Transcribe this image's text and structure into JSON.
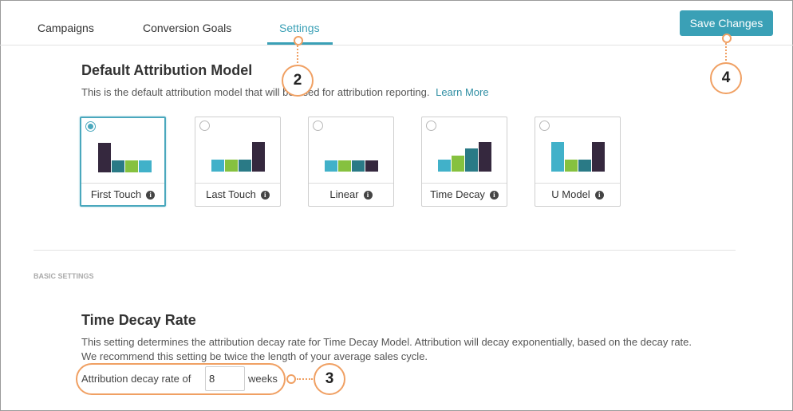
{
  "tabs": [
    {
      "label": "Campaigns"
    },
    {
      "label": "Conversion Goals"
    },
    {
      "label": "Settings"
    }
  ],
  "toolbar": {
    "save_label": "Save Changes"
  },
  "attribution": {
    "title": "Default Attribution Model",
    "description": "This is the default attribution model that will be used for attribution reporting.",
    "learn_more": "Learn More",
    "models": [
      {
        "label": "First Touch",
        "info": "i",
        "selected": true
      },
      {
        "label": "Last Touch",
        "info": "i",
        "selected": false
      },
      {
        "label": "Linear",
        "info": "i",
        "selected": false
      },
      {
        "label": "Time Decay",
        "info": "i",
        "selected": false
      },
      {
        "label": "U Model",
        "info": "i",
        "selected": false
      }
    ]
  },
  "basic_settings": {
    "section_label": "BASIC SETTINGS",
    "title": "Time Decay Rate",
    "description_line1": "This setting determines the attribution decay rate for Time Decay Model. Attribution will decay exponentially, based on the decay rate.",
    "description_line2": "We recommend this setting be twice the length of your average sales cycle.",
    "decay_label": "Attribution decay rate of",
    "decay_value": "8",
    "decay_unit": "weeks"
  },
  "callouts": {
    "settings_tab": "2",
    "decay_field": "3",
    "save_button": "4"
  },
  "colors": {
    "accent": "#3aa0b6",
    "callout": "#f0a063",
    "bar_dark": "#35283e",
    "bar_teal": "#2a7a86",
    "bar_cyan": "#41b1c9",
    "bar_green": "#86c13f"
  }
}
